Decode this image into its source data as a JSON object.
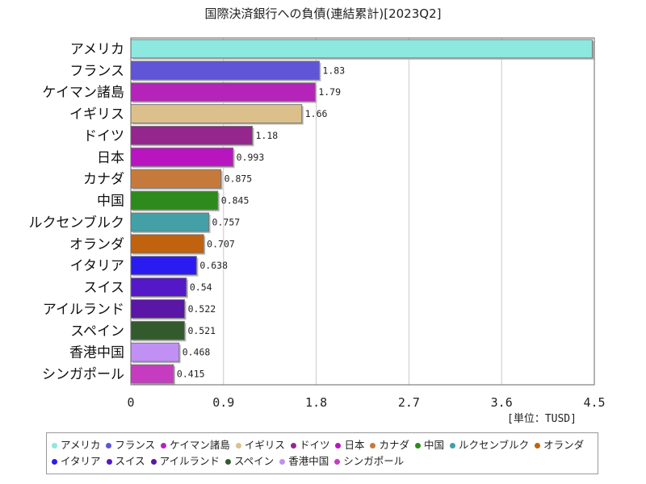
{
  "chart_data": {
    "type": "bar",
    "orientation": "horizontal",
    "title": "国際決済銀行への負債(連結累計)[2023Q2]",
    "unit_label": "[単位：TUSD]",
    "categories": [
      "アメリカ",
      "フランス",
      "ケイマン諸島",
      "イギリス",
      "ドイツ",
      "日本",
      "カナダ",
      "中国",
      "ルクセンブルク",
      "オランダ",
      "イタリア",
      "スイス",
      "アイルランド",
      "スペイン",
      "香港中国",
      "シンガポール"
    ],
    "values": [
      4.48,
      1.83,
      1.79,
      1.66,
      1.18,
      0.993,
      0.875,
      0.845,
      0.757,
      0.707,
      0.638,
      0.54,
      0.522,
      0.521,
      0.468,
      0.415
    ],
    "value_labels": [
      "",
      "1.83",
      "1.79",
      "1.66",
      "1.18",
      "0.993",
      "0.875",
      "0.845",
      "0.757",
      "0.707",
      "0.638",
      "0.54",
      "0.522",
      "0.521",
      "0.468",
      "0.415"
    ],
    "colors": [
      "#8de8e0",
      "#5f55d6",
      "#b424b8",
      "#dcc08c",
      "#94268e",
      "#b815c0",
      "#c57a3c",
      "#2e8a1c",
      "#42a0a6",
      "#c1620e",
      "#2a1cf0",
      "#5518c8",
      "#5a16a4",
      "#325a2c",
      "#c090f4",
      "#c63cc0"
    ],
    "xlim": [
      0,
      4.5
    ],
    "xticks": [
      "0",
      "0.9",
      "1.8",
      "2.7",
      "3.6",
      "4.5"
    ],
    "grid": true,
    "legend_position": "bottom"
  }
}
